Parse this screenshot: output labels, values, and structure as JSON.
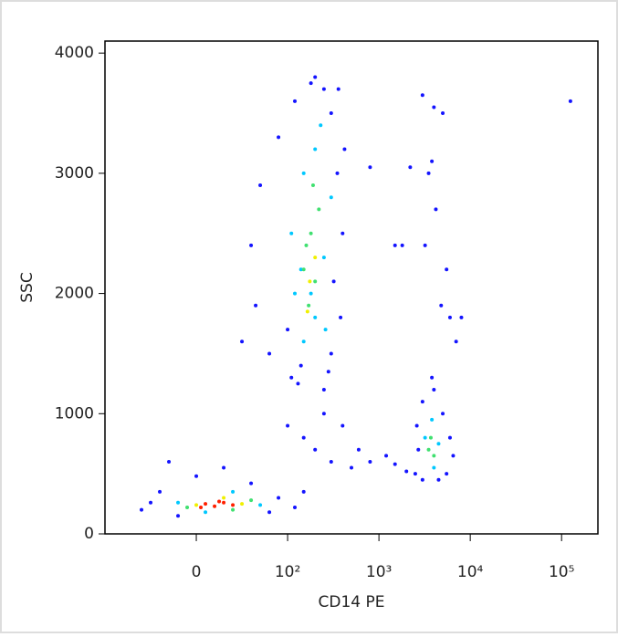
{
  "chart_data": {
    "type": "scatter",
    "x_label": "CD14 PE",
    "y_label": "SSC",
    "xscale": "biexponential",
    "xlim": [
      -100,
      250000
    ],
    "ylim": [
      0,
      4100
    ],
    "xticks": [
      0,
      {
        "value": 100,
        "label": "10²"
      },
      {
        "value": 1000,
        "label": "10³"
      },
      {
        "value": 10000,
        "label": "10⁴"
      },
      {
        "value": 100000,
        "label": "10⁵"
      }
    ],
    "yticks": [
      0,
      1000,
      2000,
      3000,
      4000
    ],
    "series": [
      {
        "color": "#1414ff",
        "x": [
          -60,
          -40,
          -20,
          80,
          90,
          60,
          0,
          -50,
          120,
          150,
          30,
          -30,
          110,
          130,
          250,
          300,
          380,
          400,
          350,
          300,
          250,
          180,
          120,
          90,
          70,
          60,
          65,
          80,
          100,
          320,
          420,
          200,
          50,
          140,
          280,
          360,
          150,
          200,
          300,
          500,
          800,
          1200,
          1500,
          2000,
          400,
          600,
          100,
          250,
          2500,
          2600,
          3000,
          4000,
          5000,
          6000,
          5500,
          4500,
          3000,
          2700,
          6500,
          3800,
          3000,
          4000,
          5000,
          3500,
          4200,
          3200,
          5500,
          6000,
          7000,
          4800,
          8000,
          1500,
          1800,
          2200,
          125000,
          800,
          3800
        ],
        "values": [
          200,
          350,
          150,
          180,
          300,
          420,
          480,
          260,
          220,
          350,
          550,
          600,
          1300,
          1250,
          1200,
          1500,
          1800,
          2500,
          3000,
          3500,
          3700,
          3750,
          3600,
          3300,
          2900,
          2400,
          1900,
          1500,
          1700,
          2100,
          3200,
          3800,
          1600,
          1400,
          1350,
          3700,
          800,
          700,
          600,
          550,
          600,
          650,
          580,
          520,
          900,
          700,
          900,
          1000,
          500,
          900,
          1100,
          1200,
          1000,
          800,
          500,
          450,
          450,
          700,
          650,
          1300,
          3650,
          3550,
          3500,
          3000,
          2700,
          2400,
          2200,
          1800,
          1600,
          1900,
          1800,
          2400,
          2400,
          3050,
          3600,
          3050,
          3100
        ]
      },
      {
        "color": "#00c8ff",
        "x": [
          120,
          150,
          200,
          250,
          300,
          200,
          150,
          110,
          180,
          260,
          230,
          140,
          -20,
          70,
          40,
          10,
          3200,
          4500,
          3800,
          4000
        ],
        "values": [
          2000,
          1600,
          1800,
          2300,
          2800,
          3200,
          3000,
          2500,
          2000,
          1700,
          3400,
          2200,
          260,
          240,
          350,
          180,
          800,
          750,
          950,
          550
        ]
      },
      {
        "color": "#40e070",
        "x": [
          150,
          180,
          200,
          170,
          220,
          160,
          190,
          -10,
          60,
          40,
          3500,
          4000,
          3700
        ],
        "values": [
          2200,
          2500,
          2100,
          1900,
          2700,
          2400,
          2900,
          220,
          280,
          200,
          700,
          650,
          800
        ]
      },
      {
        "color": "#f0f000",
        "x": [
          175,
          200,
          165,
          0,
          50,
          30
        ],
        "values": [
          2100,
          2300,
          1850,
          240,
          250,
          300
        ]
      },
      {
        "color": "#ff2000",
        "x": [
          10,
          20,
          30,
          40,
          25,
          5
        ],
        "values": [
          250,
          230,
          260,
          240,
          270,
          220
        ]
      }
    ]
  }
}
